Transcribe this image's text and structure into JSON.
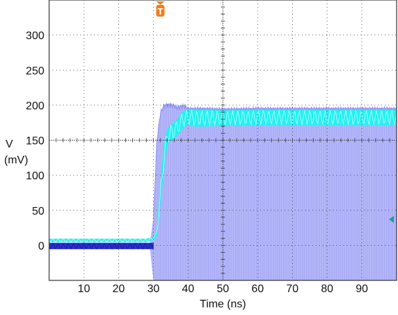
{
  "chart_data": {
    "type": "line",
    "title": "",
    "xlabel": "Time (ns)",
    "ylabel_line1": "V",
    "ylabel_line2": "(mV)",
    "xlim": [
      0,
      100
    ],
    "ylim": [
      -50,
      350
    ],
    "x_ticks": [
      10,
      20,
      30,
      40,
      50,
      60,
      70,
      80,
      90
    ],
    "y_ticks": [
      0,
      50,
      100,
      150,
      200,
      250,
      300
    ],
    "grid": "dotted",
    "trigger_marker": {
      "label": "T",
      "x": 32,
      "color": "#f07f1d"
    },
    "ground_marker": {
      "y": 37,
      "color": "#1e9d9d"
    },
    "colors": {
      "background": "#ffffff",
      "envelope": "#a7aaf7",
      "dark_trace": "#2a2fd0",
      "cyan_trace": "#26f0f0",
      "grid": "#333333"
    },
    "series": [
      {
        "color": "#26f0f0",
        "x": [
          0,
          28,
          29,
          30,
          31,
          32,
          33,
          34,
          35,
          36,
          37,
          38,
          39,
          40,
          42,
          45,
          50,
          60,
          70,
          80,
          90,
          100
        ],
        "upper": [
          9,
          9,
          10,
          12,
          20,
          80,
          140,
          165,
          172,
          175,
          180,
          188,
          192,
          194,
          193,
          193,
          192,
          193,
          193,
          193,
          193,
          193
        ],
        "lower": [
          5,
          5,
          6,
          8,
          14,
          60,
          110,
          145,
          150,
          152,
          158,
          165,
          170,
          172,
          170,
          170,
          171,
          172,
          172,
          172,
          172,
          172
        ]
      },
      {
        "color": "#2a2fd0",
        "x": [
          0,
          10,
          20,
          28,
          30
        ],
        "upper": [
          3,
          3,
          3,
          3,
          3
        ],
        "lower": [
          -5,
          -5,
          -5,
          -5,
          -5
        ]
      },
      {
        "color": "#a7aaf7",
        "x": [
          0,
          29,
          30,
          31,
          32,
          33,
          34,
          35,
          36,
          37,
          38,
          39,
          40,
          45,
          50,
          60,
          70,
          80,
          90,
          100
        ],
        "upper": [
          3,
          3,
          40,
          150,
          190,
          200,
          202,
          202,
          200,
          198,
          200,
          200,
          196,
          196,
          195,
          196,
          196,
          196,
          196,
          196
        ],
        "lower": [
          -5,
          -5,
          -50,
          -50,
          -50,
          -50,
          -50,
          -50,
          -50,
          -50,
          -50,
          -50,
          -50,
          -50,
          -50,
          -50,
          -50,
          -50,
          -50,
          -50
        ]
      }
    ]
  }
}
